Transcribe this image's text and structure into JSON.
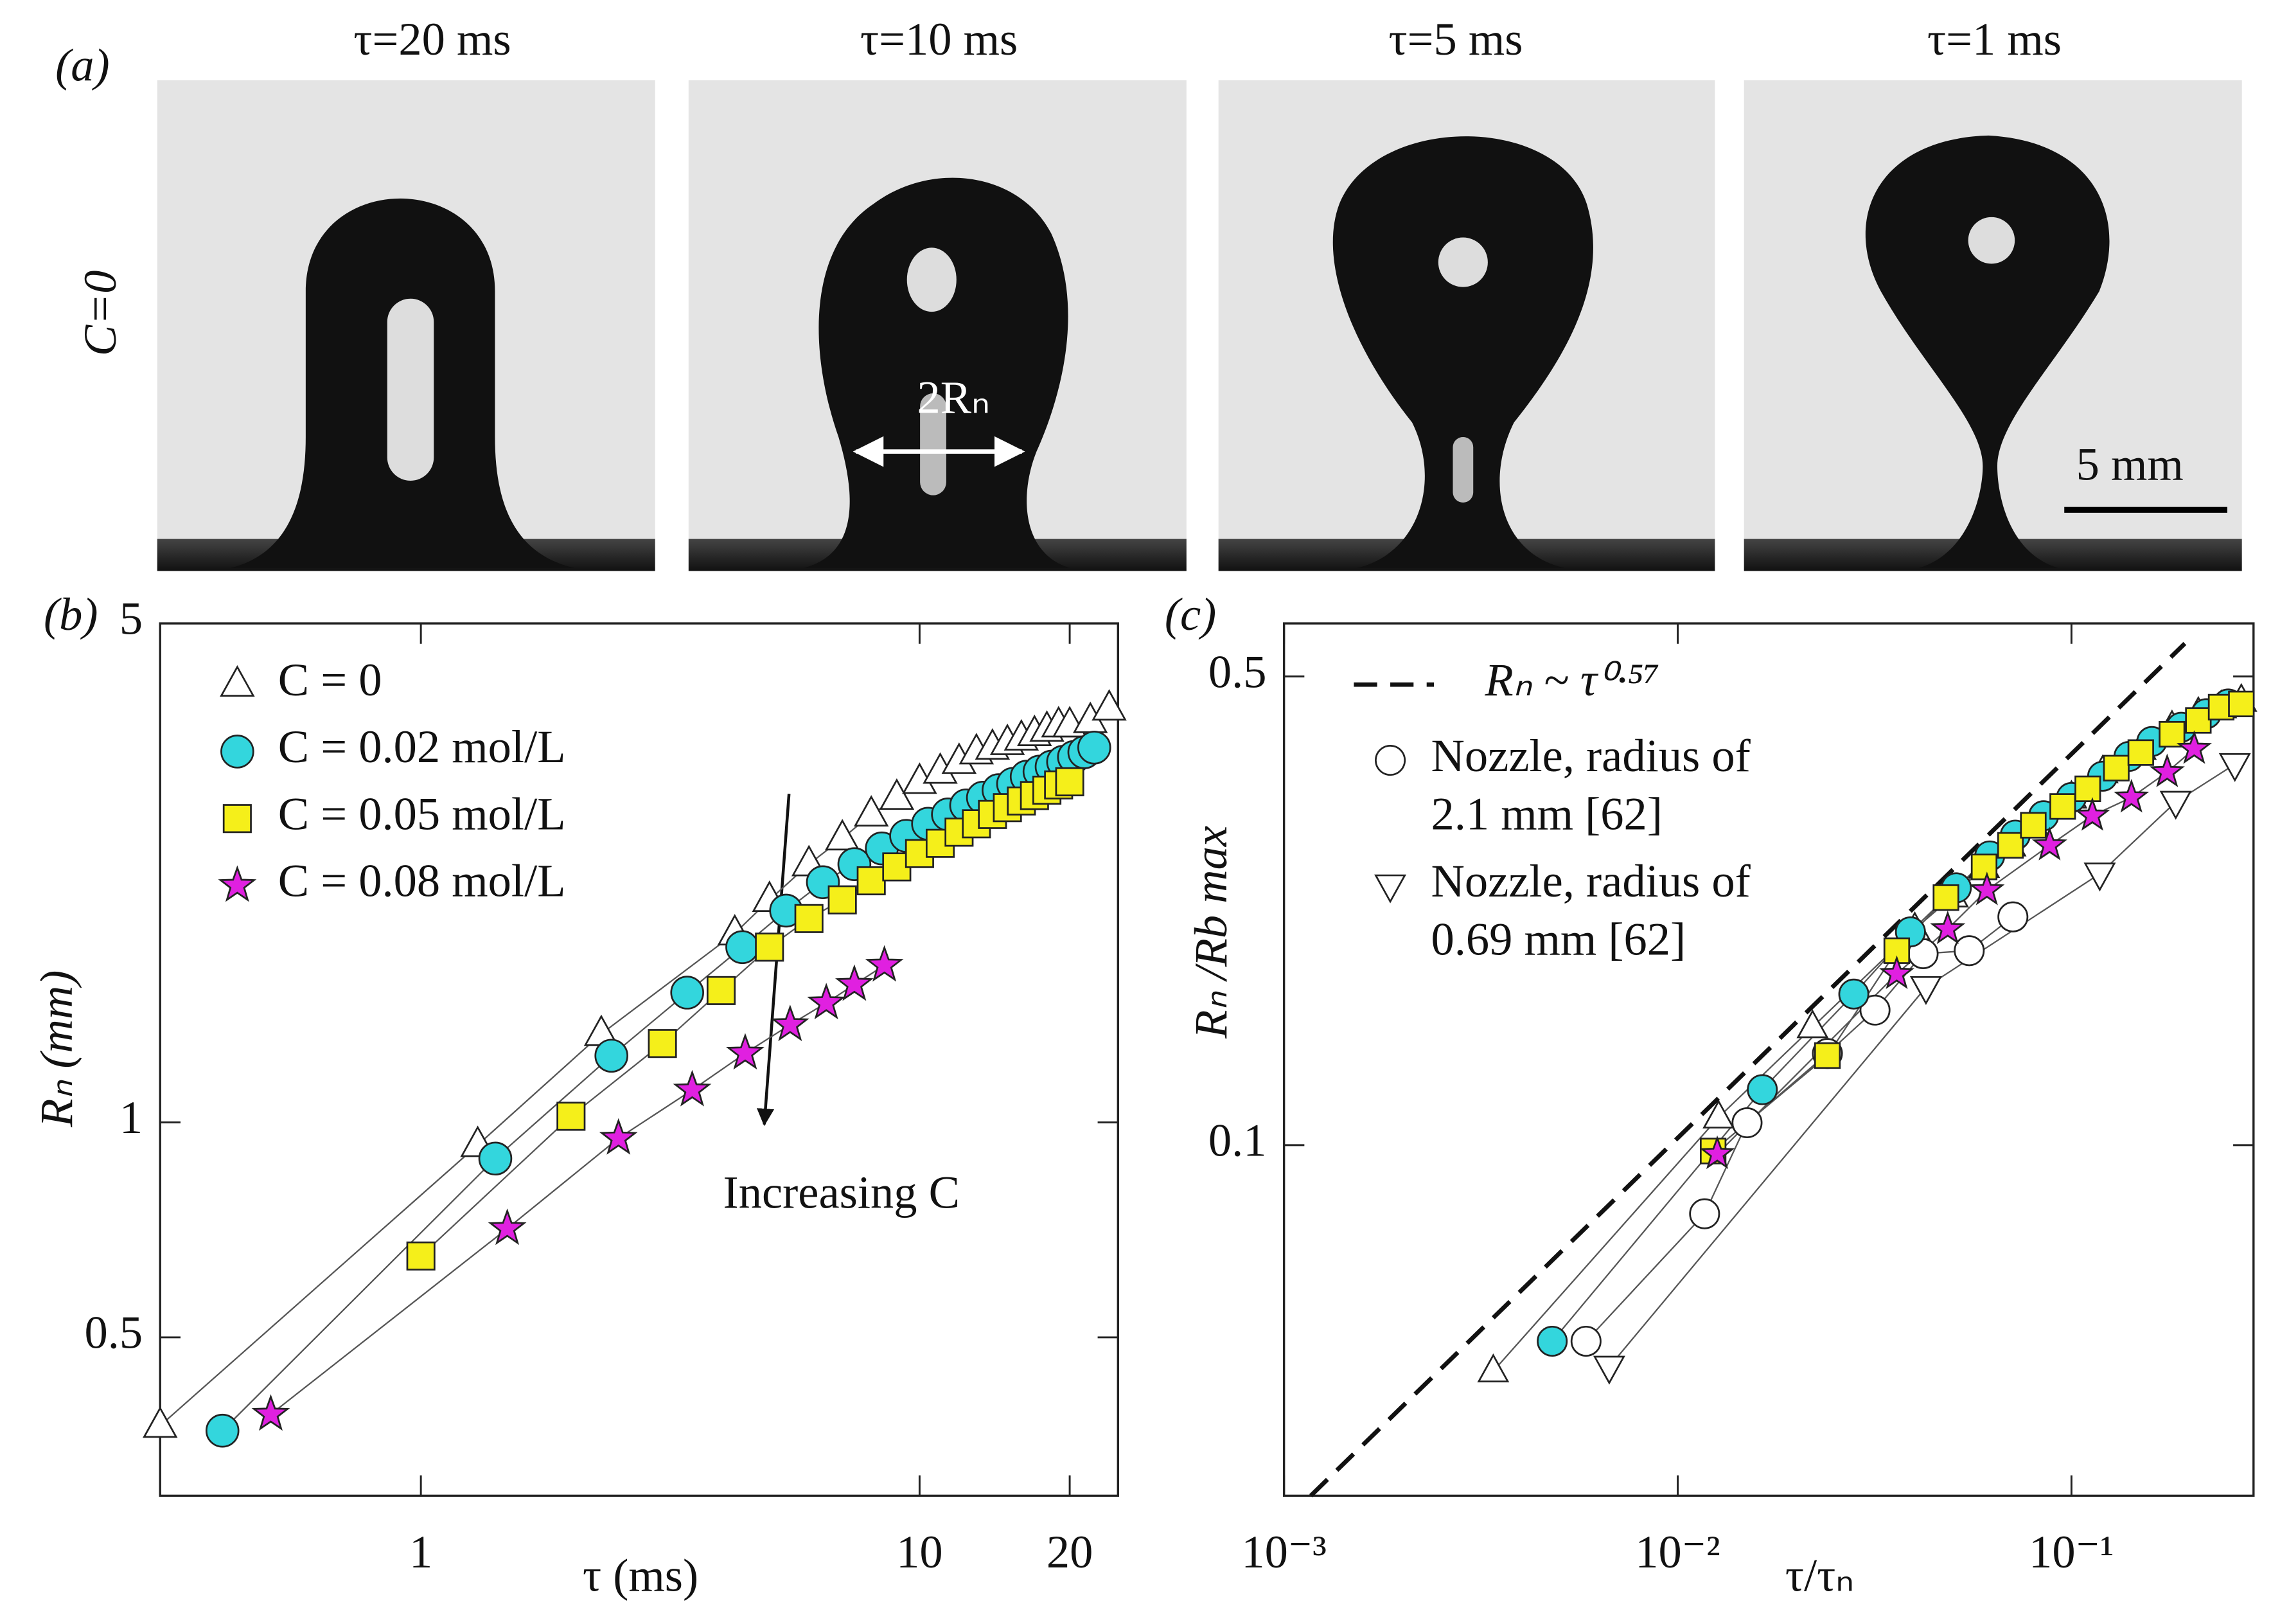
{
  "panel_a": {
    "label": "(a)",
    "row_label": "C=0",
    "frames": [
      "τ=20 ms",
      "τ=10 ms",
      "τ=5 ms",
      "τ=1 ms"
    ],
    "annotation": "2Rₙ",
    "scale_bar": "5 mm"
  },
  "chart_data": [
    {
      "type": "scatter",
      "label": "(b)",
      "xlabel": "τ (ms)",
      "ylabel": "Rₙ (mm)",
      "xscale": "log",
      "yscale": "log",
      "xlim": [
        0.3,
        25
      ],
      "ylim": [
        0.3,
        5
      ],
      "xticks": [
        1,
        10,
        20
      ],
      "yticks": [
        0.5,
        1,
        5
      ],
      "legend": "upper left",
      "annotation": "Increasing C",
      "series": [
        {
          "name": "C = 0",
          "marker": "triangle",
          "color": "#ffffff",
          "x": [
            0.3,
            1.3,
            2.3,
            4.26,
            5,
            6,
            7,
            8,
            9,
            10,
            11,
            12,
            13,
            14,
            15,
            16,
            17,
            18,
            19,
            20,
            22,
            24
          ],
          "values": [
            0.376,
            0.93,
            1.33,
            1.84,
            2.05,
            2.3,
            2.5,
            2.7,
            2.85,
            3.0,
            3.1,
            3.2,
            3.3,
            3.35,
            3.4,
            3.45,
            3.5,
            3.55,
            3.6,
            3.6,
            3.65,
            3.8
          ]
        },
        {
          "name": "C = 0.02 mol/L",
          "marker": "circle",
          "color": "#33d6dd",
          "x": [
            0.4,
            1.41,
            2.41,
            3.42,
            4.41,
            5.4,
            6.4,
            7.4,
            8.4,
            9.4,
            10.4,
            11.4,
            12.4,
            13.4,
            14.4,
            15.4,
            16.4,
            17.4,
            18.4,
            19.4,
            20.4,
            21.4,
            22.4
          ],
          "values": [
            0.37,
            0.89,
            1.24,
            1.52,
            1.76,
            1.98,
            2.17,
            2.3,
            2.42,
            2.52,
            2.62,
            2.7,
            2.78,
            2.85,
            2.92,
            2.98,
            3.05,
            3.1,
            3.15,
            3.2,
            3.25,
            3.3,
            3.35
          ]
        },
        {
          "name": "C = 0.05 mol/L",
          "marker": "square",
          "color": "#f5ef1a",
          "x": [
            1.0,
            2.0,
            3.05,
            4.0,
            5.0,
            6.0,
            7,
            8,
            9,
            10,
            11,
            12,
            13,
            14,
            15,
            16,
            17,
            18,
            19,
            20
          ],
          "values": [
            0.65,
            1.02,
            1.29,
            1.53,
            1.76,
            1.93,
            2.05,
            2.18,
            2.28,
            2.38,
            2.46,
            2.55,
            2.62,
            2.7,
            2.76,
            2.82,
            2.87,
            2.92,
            2.97,
            3.0
          ]
        },
        {
          "name": "C = 0.08 mol/L",
          "marker": "star",
          "color": "#e020e0",
          "x": [
            0.5,
            1.49,
            2.49,
            3.5,
            4.47,
            5.5,
            6.5,
            7.4,
            8.5
          ],
          "values": [
            0.39,
            0.71,
            0.95,
            1.11,
            1.25,
            1.37,
            1.47,
            1.56,
            1.66
          ]
        }
      ]
    },
    {
      "type": "scatter",
      "label": "(c)",
      "xlabel": "τ/τₙ",
      "ylabel": "Rₙ /Rb max",
      "xscale": "log",
      "yscale": "log",
      "xlim": [
        0.001,
        0.29
      ],
      "ylim": [
        0.03,
        0.6
      ],
      "xticks": [
        {
          "value": 0.001,
          "label": "10⁻³"
        },
        {
          "value": 0.01,
          "label": "10⁻²"
        },
        {
          "value": 0.1,
          "label": "10⁻¹"
        }
      ],
      "yticks": [
        0.1,
        0.5
      ],
      "legend": "upper left",
      "series": [
        {
          "name": "Rₙ ~ τ⁰·⁵⁷",
          "marker": "dashed",
          "color": "#111111",
          "x": [
            0.00117,
            0.194
          ],
          "values": [
            0.03,
            0.56
          ]
        },
        {
          "name": "Nozzle, radius of 2.1 mm [62]",
          "marker": "circle",
          "color": "#ffffff",
          "x": [
            0.00585,
            0.0117,
            0.015,
            0.024,
            0.0317,
            0.042,
            0.055,
            0.071
          ],
          "values": [
            0.051,
            0.079,
            0.108,
            0.137,
            0.159,
            0.193,
            0.195,
            0.219
          ]
        },
        {
          "name": "Nozzle, radius of 0.69 mm [62]",
          "marker": "triangle-down",
          "color": "#ffffff",
          "x": [
            0.0067,
            0.0427,
            0.118,
            0.184,
            0.26
          ],
          "values": [
            0.0467,
            0.172,
            0.254,
            0.325,
            0.37
          ]
        },
        {
          "marker": "triangle",
          "color": "#ffffff",
          "x": [
            0.0034,
            0.0127,
            0.022,
            0.04,
            0.05,
            0.06,
            0.07,
            0.08,
            0.1,
            0.12,
            0.15,
            0.18,
            0.21,
            0.24,
            0.27
          ],
          "values": [
            0.046,
            0.11,
            0.15,
            0.21,
            0.235,
            0.26,
            0.28,
            0.3,
            0.33,
            0.36,
            0.39,
            0.42,
            0.44,
            0.45,
            0.46
          ]
        },
        {
          "marker": "circle",
          "color": "#33d6dd",
          "x": [
            0.0048,
            0.0164,
            0.028,
            0.039,
            0.051,
            0.062,
            0.072,
            0.085,
            0.1,
            0.12,
            0.14,
            0.16,
            0.19,
            0.22,
            0.25
          ],
          "values": [
            0.051,
            0.121,
            0.168,
            0.208,
            0.242,
            0.27,
            0.29,
            0.31,
            0.33,
            0.355,
            0.38,
            0.4,
            0.42,
            0.44,
            0.455
          ]
        },
        {
          "marker": "square",
          "color": "#f5ef1a",
          "x": [
            0.0123,
            0.024,
            0.036,
            0.048,
            0.06,
            0.07,
            0.08,
            0.095,
            0.11,
            0.13,
            0.15,
            0.18,
            0.21,
            0.24,
            0.27
          ],
          "values": [
            0.098,
            0.136,
            0.195,
            0.234,
            0.26,
            0.28,
            0.3,
            0.32,
            0.34,
            0.365,
            0.385,
            0.41,
            0.43,
            0.45,
            0.455
          ]
        },
        {
          "marker": "star",
          "color": "#e020e0",
          "x": [
            0.0126,
            0.036,
            0.0485,
            0.061,
            0.088,
            0.113,
            0.142,
            0.175,
            0.205
          ],
          "values": [
            0.097,
            0.18,
            0.21,
            0.24,
            0.28,
            0.31,
            0.33,
            0.36,
            0.39
          ]
        }
      ]
    }
  ]
}
